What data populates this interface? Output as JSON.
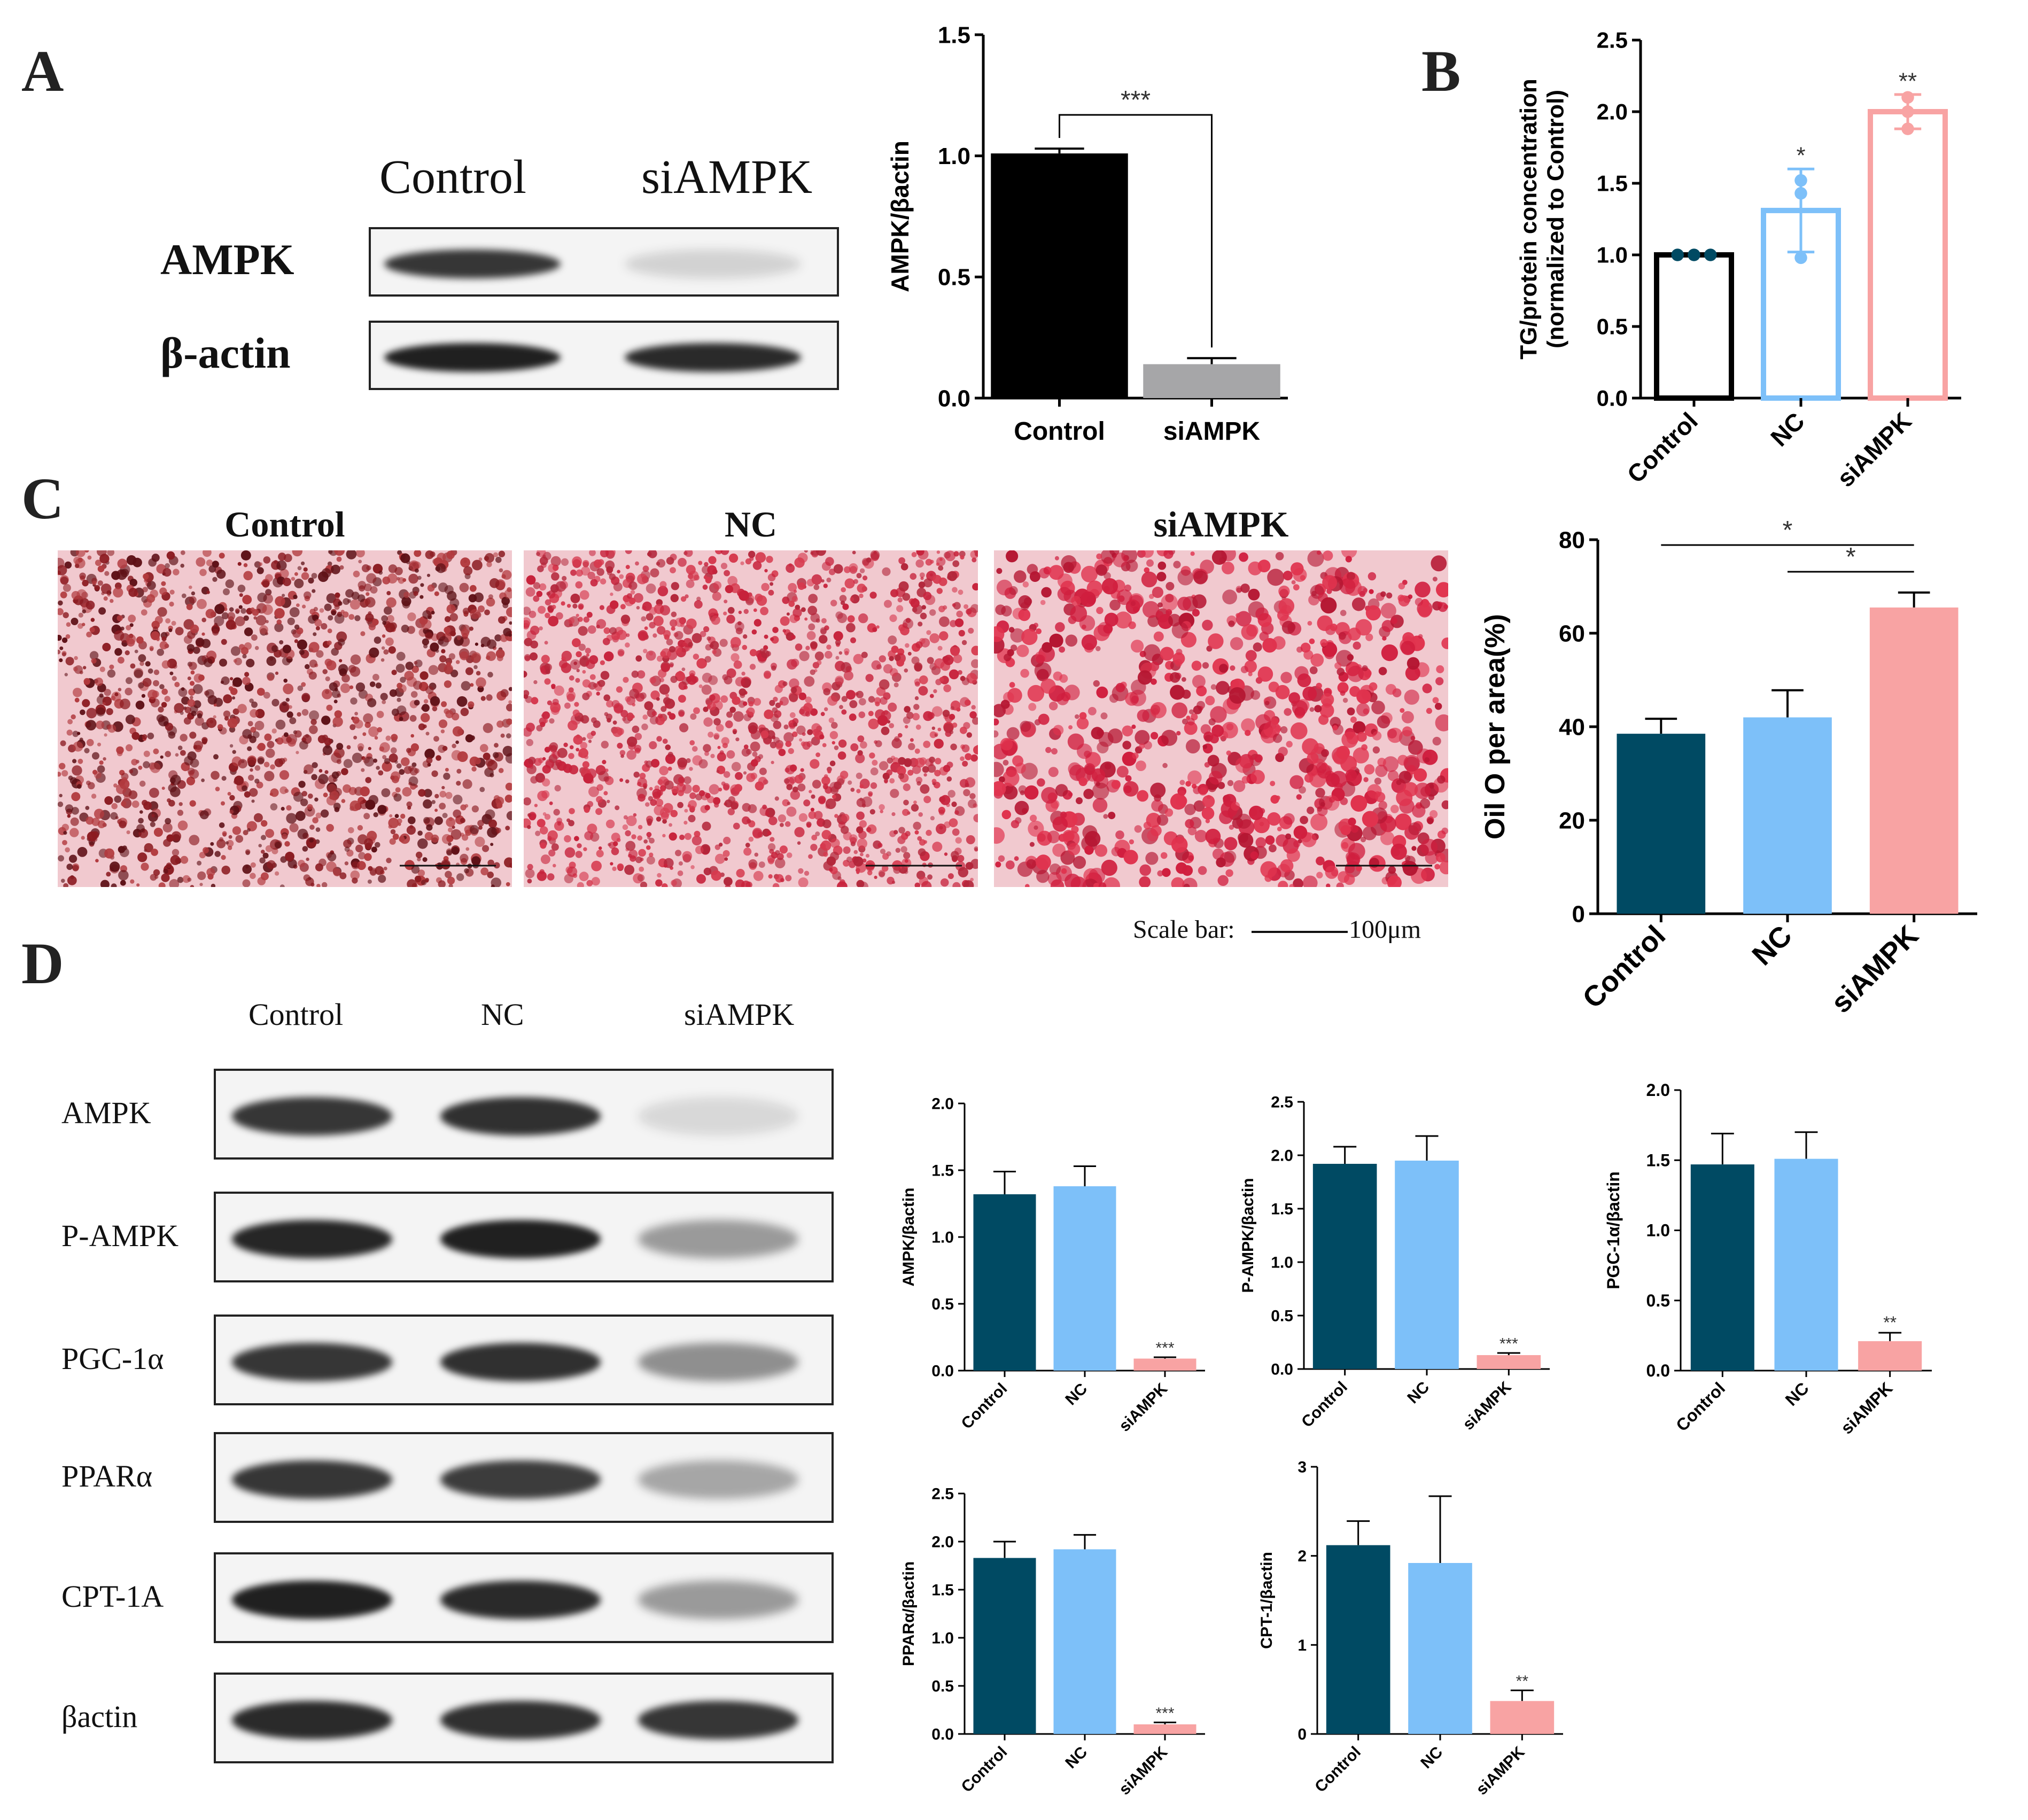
{
  "panels": {
    "a": "A",
    "b": "B",
    "c": "C",
    "d": "D"
  },
  "colors": {
    "control": "#004a63",
    "nc": "#7dc0f9",
    "siampk": "#f8a3a3",
    "black": "#000000",
    "grey": "#a6a6a8",
    "ink": "#000000"
  },
  "blotA": {
    "headers": [
      "Control",
      "siAMPK"
    ],
    "rows": [
      {
        "label": "AMPK",
        "bands": [
          0.85,
          0.15
        ]
      },
      {
        "label": "β-actin",
        "bands": [
          0.95,
          0.9
        ]
      }
    ]
  },
  "blotD": {
    "headers": [
      "Control",
      "NC",
      "siAMPK"
    ],
    "rows": [
      {
        "label": "AMPK",
        "bands": [
          0.85,
          0.88,
          0.12
        ]
      },
      {
        "label": "P-AMPK",
        "bands": [
          0.92,
          0.95,
          0.4
        ]
      },
      {
        "label": "PGC-1α",
        "bands": [
          0.85,
          0.88,
          0.45
        ]
      },
      {
        "label": "PPARα",
        "bands": [
          0.85,
          0.82,
          0.35
        ]
      },
      {
        "label": "CPT-1A",
        "bands": [
          0.95,
          0.9,
          0.4
        ]
      },
      {
        "label": "βactin",
        "bands": [
          0.9,
          0.88,
          0.85
        ]
      }
    ]
  },
  "micrographs": {
    "titles": [
      "Control",
      "NC",
      "siAMPK"
    ],
    "scale_label": "Scale bar:",
    "scale_value": "100μm"
  },
  "chart_data": [
    {
      "id": "A-bar",
      "type": "bar",
      "categories": [
        "Control",
        "siAMPK"
      ],
      "values": [
        1.01,
        0.14
      ],
      "errors": [
        0.02,
        0.025
      ],
      "colors": [
        "#000000",
        "#a6a6a8"
      ],
      "ylabel": "AMPK/βactin",
      "ylim": [
        0,
        1.5
      ],
      "yticks": [
        "0.0",
        "0.5",
        "1.0",
        "1.5"
      ],
      "ytickvals": [
        0,
        0.5,
        1.0,
        1.5
      ],
      "sig": [
        {
          "from": 0,
          "to": 1,
          "label": "***"
        }
      ],
      "stars": []
    },
    {
      "id": "B-bar",
      "type": "bar",
      "categories": [
        "Control",
        "NC",
        "siAMPK"
      ],
      "values": [
        1.0,
        1.31,
        2.0
      ],
      "errors": [
        0.0,
        0.29,
        0.12
      ],
      "colors": [
        "#000000",
        "#7dc0f9",
        "#f8a3a3"
      ],
      "hollow": true,
      "points": [
        [
          1.0,
          1.0,
          1.0
        ],
        [
          0.98,
          1.43,
          1.52
        ],
        [
          1.88,
          2.0,
          2.1
        ]
      ],
      "ylabel": "TG/protein concentration",
      "ylabel2": "(normalized to Control)",
      "ylim": [
        0,
        2.5
      ],
      "yticks": [
        "0.0",
        "0.5",
        "1.0",
        "1.5",
        "2.0",
        "2.5"
      ],
      "ytickvals": [
        0,
        0.5,
        1.0,
        1.5,
        2.0,
        2.5
      ],
      "stars": [
        "",
        "*",
        "**"
      ]
    },
    {
      "id": "C-bar",
      "type": "bar",
      "categories": [
        "Control",
        "NC",
        "siAMPK"
      ],
      "values": [
        38.5,
        42.0,
        65.5
      ],
      "errors": [
        3.2,
        5.8,
        3.2
      ],
      "colors": [
        "#004a63",
        "#7dc0f9",
        "#f8a3a3"
      ],
      "ylabel": "Oil O per area(%)",
      "ylim": [
        0,
        80
      ],
      "yticks": [
        "0",
        "20",
        "40",
        "60",
        "80"
      ],
      "ytickvals": [
        0,
        20,
        40,
        60,
        80
      ],
      "sig": [
        {
          "from": 0,
          "to": 2,
          "label": "*"
        },
        {
          "from": 1,
          "to": 2,
          "label": "*"
        }
      ],
      "stars": []
    },
    {
      "id": "D1",
      "type": "bar",
      "categories": [
        "Control",
        "NC",
        "siAMPK"
      ],
      "values": [
        1.32,
        1.38,
        0.09
      ],
      "errors": [
        0.17,
        0.15,
        0.01
      ],
      "colors": [
        "#004a63",
        "#7dc0f9",
        "#f8a3a3"
      ],
      "ylabel": "AMPK/βactin",
      "ylim": [
        0,
        2.0
      ],
      "yticks": [
        "0.0",
        "0.5",
        "1.0",
        "1.5",
        "2.0"
      ],
      "ytickvals": [
        0,
        0.5,
        1.0,
        1.5,
        2.0
      ],
      "stars": [
        "",
        "",
        "***"
      ]
    },
    {
      "id": "D2",
      "type": "bar",
      "categories": [
        "Control",
        "NC",
        "siAMPK"
      ],
      "values": [
        1.92,
        1.95,
        0.13
      ],
      "errors": [
        0.16,
        0.23,
        0.02
      ],
      "colors": [
        "#004a63",
        "#7dc0f9",
        "#f8a3a3"
      ],
      "ylabel": "P-AMPK/βactin",
      "ylim": [
        0,
        2.5
      ],
      "yticks": [
        "0.0",
        "0.5",
        "1.0",
        "1.5",
        "2.0",
        "2.5"
      ],
      "ytickvals": [
        0,
        0.5,
        1.0,
        1.5,
        2.0,
        2.5
      ],
      "stars": [
        "",
        "",
        "***"
      ]
    },
    {
      "id": "D3",
      "type": "bar",
      "categories": [
        "Control",
        "NC",
        "siAMPK"
      ],
      "values": [
        1.47,
        1.51,
        0.21
      ],
      "errors": [
        0.22,
        0.19,
        0.06
      ],
      "colors": [
        "#004a63",
        "#7dc0f9",
        "#f8a3a3"
      ],
      "ylabel": "PGC-1α/βactin",
      "ylim": [
        0,
        2.0
      ],
      "yticks": [
        "0.0",
        "0.5",
        "1.0",
        "1.5",
        "2.0"
      ],
      "ytickvals": [
        0,
        0.5,
        1.0,
        1.5,
        2.0
      ],
      "stars": [
        "",
        "",
        "**"
      ]
    },
    {
      "id": "D4",
      "type": "bar",
      "categories": [
        "Control",
        "NC",
        "siAMPK"
      ],
      "values": [
        1.83,
        1.92,
        0.1
      ],
      "errors": [
        0.17,
        0.15,
        0.02
      ],
      "colors": [
        "#004a63",
        "#7dc0f9",
        "#f8a3a3"
      ],
      "ylabel": "PPARα/βactin",
      "ylim": [
        0,
        2.5
      ],
      "yticks": [
        "0.0",
        "0.5",
        "1.0",
        "1.5",
        "2.0",
        "2.5"
      ],
      "ytickvals": [
        0,
        0.5,
        1.0,
        1.5,
        2.0,
        2.5
      ],
      "stars": [
        "",
        "",
        "***"
      ]
    },
    {
      "id": "D5",
      "type": "bar",
      "categories": [
        "Control",
        "NC",
        "siAMPK"
      ],
      "values": [
        2.12,
        1.92,
        0.37
      ],
      "errors": [
        0.27,
        0.75,
        0.12
      ],
      "colors": [
        "#004a63",
        "#7dc0f9",
        "#f8a3a3"
      ],
      "ylabel": "CPT-1/βactin",
      "ylim": [
        0,
        3
      ],
      "yticks": [
        "0",
        "1",
        "2",
        "3"
      ],
      "ytickvals": [
        0,
        1,
        2,
        3
      ],
      "stars": [
        "",
        "",
        "**"
      ]
    }
  ]
}
